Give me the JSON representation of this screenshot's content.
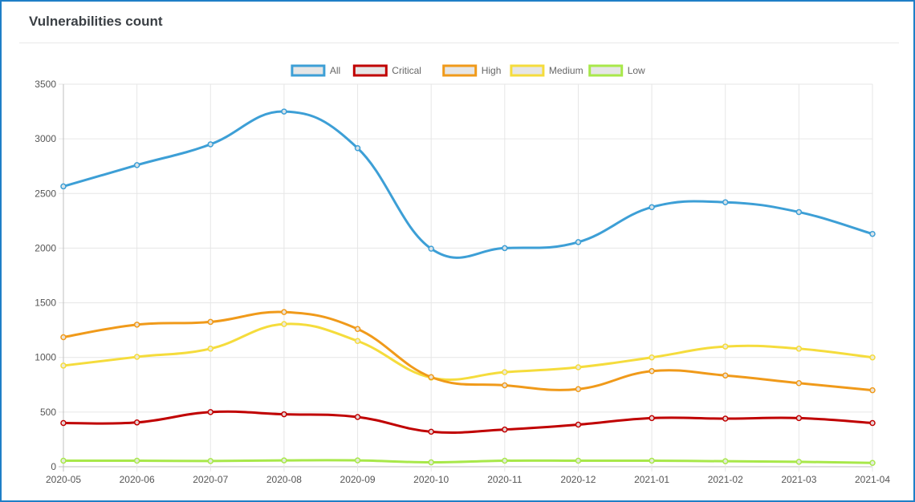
{
  "card": {
    "title": "Vulnerabilities count"
  },
  "chart_data": {
    "type": "line",
    "title": "",
    "xlabel": "",
    "ylabel": "",
    "categories": [
      "2020-05",
      "2020-06",
      "2020-07",
      "2020-08",
      "2020-09",
      "2020-10",
      "2020-11",
      "2020-12",
      "2021-01",
      "2021-02",
      "2021-03",
      "2021-04"
    ],
    "ylim": [
      0,
      3500
    ],
    "yticks": [
      0,
      500,
      1000,
      1500,
      2000,
      2500,
      3000,
      3500
    ],
    "grid": true,
    "legend_position": "top-center",
    "series": [
      {
        "name": "All",
        "color": "#3d9fd6",
        "values": [
          2565,
          2760,
          2950,
          3250,
          2915,
          1995,
          2000,
          2055,
          2375,
          2420,
          2330,
          2130
        ]
      },
      {
        "name": "Critical",
        "color": "#c00000",
        "values": [
          400,
          405,
          500,
          480,
          455,
          320,
          340,
          385,
          445,
          440,
          445,
          400
        ]
      },
      {
        "name": "High",
        "color": "#f09a1a",
        "values": [
          1185,
          1300,
          1325,
          1415,
          1260,
          820,
          745,
          710,
          875,
          835,
          765,
          700
        ]
      },
      {
        "name": "Medium",
        "color": "#f5dc3c",
        "values": [
          925,
          1005,
          1080,
          1305,
          1150,
          815,
          865,
          910,
          1000,
          1100,
          1080,
          1000
        ]
      },
      {
        "name": "Low",
        "color": "#a8e84a",
        "values": [
          55,
          55,
          52,
          58,
          58,
          40,
          55,
          55,
          55,
          50,
          45,
          35
        ]
      }
    ]
  }
}
